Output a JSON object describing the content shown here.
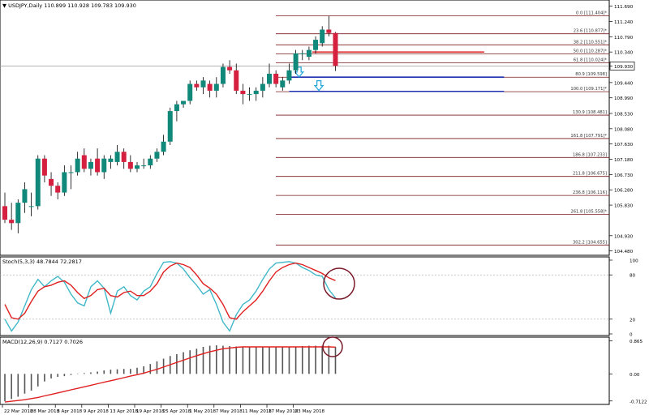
{
  "header": {
    "symbol_line": "▼ USDJPY,Daily  110.899 110.928 109.783 109.930"
  },
  "colors": {
    "bull": "#11897a",
    "bear": "#d6203f",
    "fib": "#7a1a1a",
    "stoch_main": "#40b8c8",
    "stoch_signal": "#e02020",
    "macd_hist": "#555555",
    "macd_signal": "#e02020",
    "blue_line": "#1f2fb0",
    "red_line": "#e03030",
    "arrow": "#28a8d8",
    "circle": "#7a1a2a"
  },
  "chart_data": [
    {
      "type": "candlestick",
      "title": "USDJPY,Daily",
      "ohlc_header": "110.899 110.928 109.783 109.930",
      "price_axis_labels": [
        "111.690",
        "111.240",
        "110.790",
        "110.340",
        "109.930",
        "109.440",
        "108.990",
        "108.530",
        "108.080",
        "107.630",
        "107.180",
        "106.730",
        "106.280",
        "105.830",
        "104.930",
        "104.480"
      ],
      "current_price": 109.93,
      "ylim": [
        104.4,
        111.8
      ],
      "fibonacci_levels": [
        {
          "label": "0.0 [111.404]*",
          "price": 111.404
        },
        {
          "label": "23.6 [110.877]*",
          "price": 110.877
        },
        {
          "label": "38.2 [110.551]*",
          "price": 110.551
        },
        {
          "label": "50.0 [110.287]*",
          "price": 110.287
        },
        {
          "label": "61.8 [110.024]*",
          "price": 110.024
        },
        {
          "label": "80.9 [109.598]",
          "price": 109.598
        },
        {
          "label": "100.0 [109.171]*",
          "price": 109.171
        },
        {
          "label": "130.9 [108.481]",
          "price": 108.481
        },
        {
          "label": "161.8 [107.791]*",
          "price": 107.791
        },
        {
          "label": "186.8 [107.233]",
          "price": 107.233
        },
        {
          "label": "211.8 [106.675]",
          "price": 106.675
        },
        {
          "label": "236.8 [106.116]",
          "price": 106.116
        },
        {
          "label": "261.8 [105.558]*",
          "price": 105.558
        },
        {
          "label": "302.2 [104.655]",
          "price": 104.655
        }
      ],
      "candles": [
        [
          105.8,
          106.2,
          105.3,
          105.4
        ],
        [
          105.4,
          105.9,
          105.1,
          105.3
        ],
        [
          105.3,
          106.0,
          105.0,
          105.9
        ],
        [
          105.9,
          106.5,
          105.6,
          106.3
        ],
        [
          105.8,
          106.2,
          105.5,
          105.8
        ],
        [
          105.8,
          107.3,
          105.7,
          107.2
        ],
        [
          107.2,
          107.3,
          106.5,
          106.7
        ],
        [
          106.6,
          106.8,
          106.1,
          106.4
        ],
        [
          106.4,
          106.5,
          106.0,
          106.2
        ],
        [
          106.2,
          107.0,
          106.1,
          106.8
        ],
        [
          106.8,
          107.0,
          106.3,
          106.8
        ],
        [
          106.8,
          107.4,
          106.7,
          107.2
        ],
        [
          107.3,
          107.5,
          106.8,
          106.9
        ],
        [
          106.9,
          107.2,
          106.7,
          107.1
        ],
        [
          107.2,
          107.5,
          106.7,
          106.8
        ],
        [
          106.8,
          107.3,
          106.6,
          107.2
        ],
        [
          107.1,
          107.3,
          106.9,
          107.2
        ],
        [
          107.1,
          107.6,
          107.0,
          107.4
        ],
        [
          107.4,
          107.5,
          106.9,
          107.1
        ],
        [
          107.1,
          107.3,
          106.8,
          106.9
        ],
        [
          106.9,
          107.1,
          106.8,
          107.0
        ],
        [
          107.0,
          107.2,
          106.9,
          107.0
        ],
        [
          107.0,
          107.3,
          106.9,
          107.2
        ],
        [
          107.2,
          107.5,
          107.1,
          107.4
        ],
        [
          107.4,
          107.9,
          107.3,
          107.7
        ],
        [
          107.7,
          108.7,
          107.6,
          108.6
        ],
        [
          108.6,
          108.9,
          108.3,
          108.8
        ],
        [
          108.8,
          108.9,
          108.7,
          108.9
        ],
        [
          108.9,
          109.5,
          108.8,
          109.4
        ],
        [
          109.4,
          109.5,
          109.2,
          109.3
        ],
        [
          109.3,
          109.6,
          109.1,
          109.5
        ],
        [
          109.4,
          109.5,
          109.0,
          109.2
        ],
        [
          109.2,
          109.6,
          109.0,
          109.4
        ],
        [
          109.4,
          110.0,
          109.3,
          109.9
        ],
        [
          109.9,
          110.1,
          109.7,
          109.8
        ],
        [
          109.8,
          110.0,
          109.1,
          109.2
        ],
        [
          109.2,
          109.4,
          108.8,
          109.1
        ],
        [
          109.1,
          109.3,
          108.9,
          109.1
        ],
        [
          109.1,
          109.3,
          108.9,
          109.2
        ],
        [
          109.2,
          109.6,
          109.0,
          109.4
        ],
        [
          109.4,
          110.0,
          109.3,
          109.7
        ],
        [
          109.7,
          109.8,
          109.3,
          109.4
        ],
        [
          109.3,
          109.6,
          109.2,
          109.5
        ],
        [
          109.5,
          110.0,
          109.4,
          109.8
        ],
        [
          109.8,
          110.4,
          109.7,
          110.3
        ],
        [
          110.3,
          110.4,
          110.1,
          110.3
        ],
        [
          110.2,
          110.5,
          110.1,
          110.4
        ],
        [
          110.4,
          110.8,
          110.3,
          110.7
        ],
        [
          110.6,
          111.1,
          110.5,
          111.0
        ],
        [
          111.0,
          111.4,
          110.8,
          110.9
        ],
        [
          110.9,
          110.93,
          109.78,
          109.93
        ]
      ],
      "annotation_lines": [
        {
          "color": "red",
          "price": 110.34,
          "from_index": 46.5,
          "to_index": 72.5
        },
        {
          "color": "blue",
          "price": 109.6,
          "from_index": 43.0,
          "to_index": 75.5
        },
        {
          "color": "blue",
          "price": 109.18,
          "from_index": 43.0,
          "to_index": 75.5
        }
      ],
      "arrows": [
        {
          "direction": "down",
          "index": 44.5,
          "price": 109.75
        },
        {
          "direction": "down",
          "index": 47.5,
          "price": 109.35
        }
      ]
    },
    {
      "type": "line",
      "title": "Stoch(5,3,3) 48.7844 72.2817",
      "ylim": [
        0,
        100
      ],
      "levels": [
        80,
        20
      ],
      "tick_labels": [
        "100",
        "80",
        "20",
        "0"
      ],
      "series": [
        {
          "values": [
            20,
            4,
            16,
            38,
            60,
            74,
            64,
            72,
            78,
            70,
            54,
            42,
            38,
            64,
            72,
            62,
            28,
            58,
            64,
            52,
            46,
            58,
            64,
            82,
            97,
            98,
            96,
            88,
            76,
            66,
            54,
            60,
            40,
            16,
            4,
            26,
            40,
            46,
            58,
            74,
            88,
            96,
            97,
            98,
            96,
            90,
            86,
            80,
            78,
            60,
            48.78
          ]
        },
        {
          "values": [
            40,
            22,
            20,
            28,
            44,
            58,
            64,
            66,
            70,
            72,
            66,
            56,
            48,
            52,
            60,
            62,
            52,
            50,
            56,
            58,
            52,
            52,
            58,
            68,
            84,
            92,
            96,
            94,
            90,
            80,
            68,
            62,
            54,
            40,
            22,
            20,
            30,
            38,
            46,
            58,
            72,
            84,
            90,
            94,
            96,
            94,
            90,
            86,
            82,
            76,
            72.28
          ]
        }
      ]
    },
    {
      "type": "bar",
      "title": "MACD(12,26,9) 0.7127 0.7026",
      "tick_labels": [
        "0.865",
        "0.00",
        "-0.7122"
      ],
      "ylim": [
        -0.76,
        0.88
      ],
      "histogram": [
        -0.72,
        -0.66,
        -0.6,
        -0.52,
        -0.44,
        -0.33,
        -0.2,
        -0.12,
        -0.08,
        -0.06,
        -0.03,
        0.01,
        0.02,
        0.04,
        0.06,
        0.09,
        0.11,
        0.12,
        0.13,
        0.13,
        0.16,
        0.2,
        0.26,
        0.33,
        0.4,
        0.47,
        0.52,
        0.57,
        0.62,
        0.66,
        0.71,
        0.74,
        0.75,
        0.74,
        0.73,
        0.72,
        0.71,
        0.7,
        0.7,
        0.7,
        0.7,
        0.7,
        0.7,
        0.71,
        0.72,
        0.73,
        0.74,
        0.74,
        0.74,
        0.74,
        0.7127
      ],
      "signal": [
        -0.74,
        -0.72,
        -0.7,
        -0.68,
        -0.65,
        -0.62,
        -0.58,
        -0.54,
        -0.5,
        -0.46,
        -0.42,
        -0.38,
        -0.34,
        -0.3,
        -0.26,
        -0.22,
        -0.18,
        -0.14,
        -0.1,
        -0.06,
        -0.02,
        0.02,
        0.07,
        0.12,
        0.18,
        0.24,
        0.3,
        0.36,
        0.42,
        0.48,
        0.53,
        0.58,
        0.62,
        0.66,
        0.68,
        0.7,
        0.71,
        0.71,
        0.71,
        0.71,
        0.71,
        0.71,
        0.71,
        0.71,
        0.71,
        0.71,
        0.71,
        0.71,
        0.71,
        0.71,
        0.7026
      ]
    }
  ],
  "x_axis_labels": [
    {
      "label": "22 Mar 2018",
      "index": 0
    },
    {
      "label": "28 Mar 2018",
      "index": 4
    },
    {
      "label": "3 Apr 2018",
      "index": 8
    },
    {
      "label": "9 Apr 2018",
      "index": 12
    },
    {
      "label": "13 Apr 2018",
      "index": 16
    },
    {
      "label": "19 Apr 2018",
      "index": 20
    },
    {
      "label": "25 Apr 2018",
      "index": 24
    },
    {
      "label": "1 May 2018",
      "index": 28
    },
    {
      "label": "7 May 2018",
      "index": 32
    },
    {
      "label": "11 May 2018",
      "index": 36
    },
    {
      "label": "17 May 2018",
      "index": 40
    },
    {
      "label": "23 May 2018",
      "index": 44
    }
  ]
}
